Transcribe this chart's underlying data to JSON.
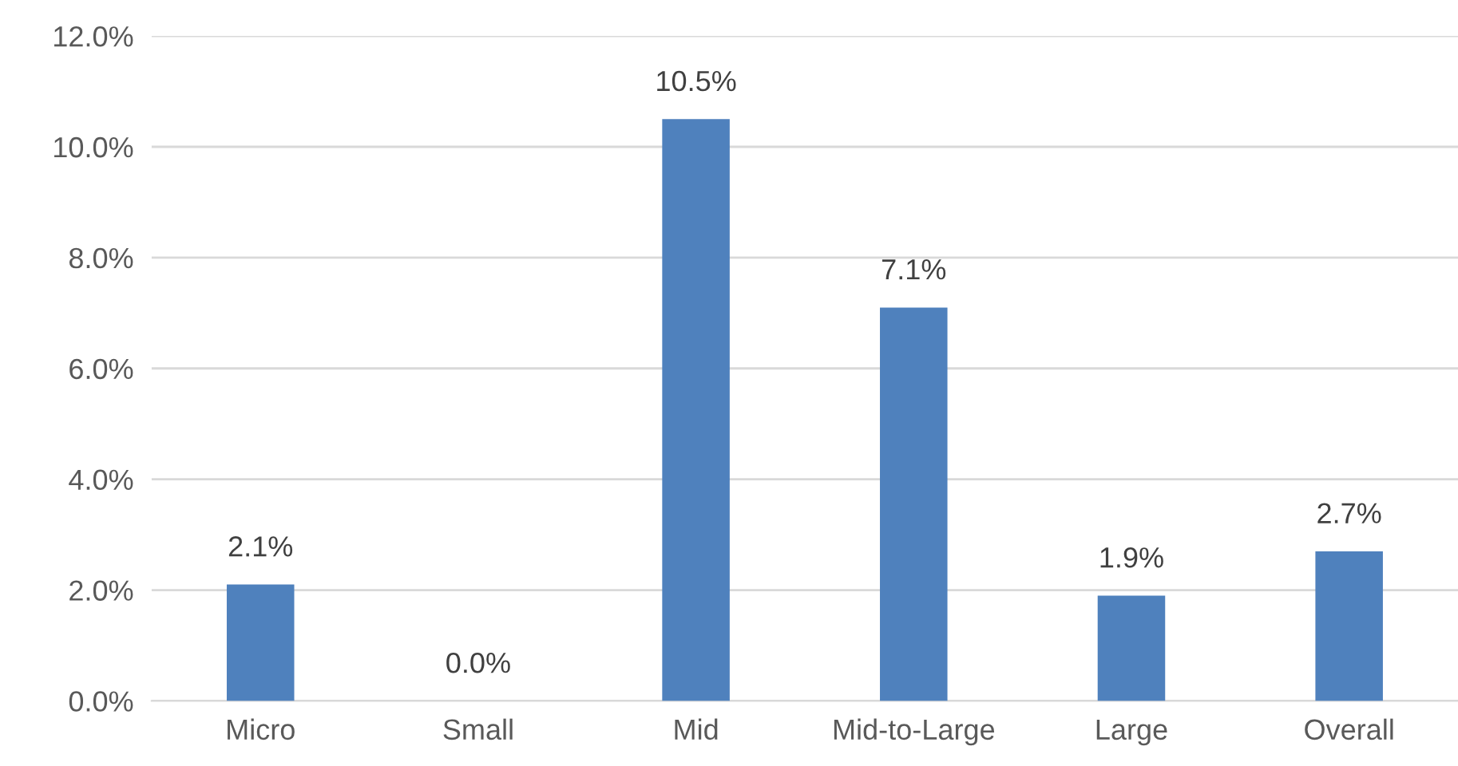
{
  "chart_data": {
    "type": "bar",
    "categories": [
      "Micro",
      "Small",
      "Mid",
      "Mid-to-Large",
      "Large",
      "Overall"
    ],
    "values": [
      2.1,
      0.0,
      10.5,
      7.1,
      1.9,
      2.7
    ],
    "value_labels": [
      "2.1%",
      "0.0%",
      "10.5%",
      "7.1%",
      "1.9%",
      "2.7%"
    ],
    "color": "#4f81bd",
    "ylim": [
      0,
      12
    ],
    "yticks": [
      {
        "value": 0,
        "label": "0.0%"
      },
      {
        "value": 2,
        "label": "2.0%"
      },
      {
        "value": 4,
        "label": "4.0%"
      },
      {
        "value": 6,
        "label": "6.0%"
      },
      {
        "value": 8,
        "label": "8.0%"
      },
      {
        "value": 10,
        "label": "10.0%"
      },
      {
        "value": 12,
        "label": "12.0%"
      }
    ],
    "grid": "y"
  }
}
